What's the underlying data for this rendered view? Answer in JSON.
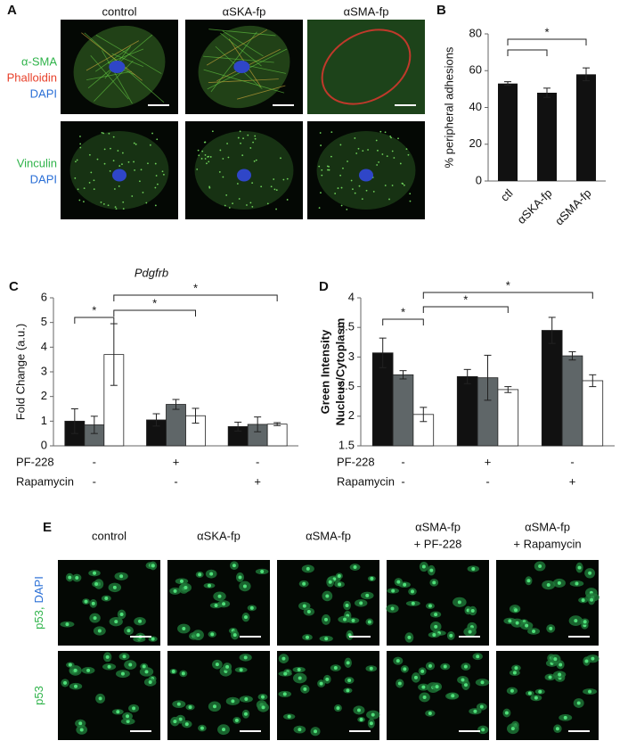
{
  "panel_a": {
    "label": "A",
    "columns": [
      "control",
      "αSKA-fp",
      "αSMA-fp"
    ],
    "rows": [
      [
        {
          "text": "α-SMA",
          "color": "#2fb34a"
        },
        {
          "text": "Phalloidin",
          "color": "#e8402a"
        },
        {
          "text": "DAPI",
          "color": "#2a6fd6"
        }
      ],
      [
        {
          "text": "Vinculin",
          "color": "#2fb34a"
        },
        {
          "text": "DAPI",
          "color": "#2a6fd6"
        }
      ]
    ]
  },
  "chart_data": [
    {
      "type": "bar",
      "panel_label": "B",
      "ylabel": "% peripheral adhesions",
      "categories": [
        "ctl",
        "αSKA-fp",
        "αSMA-fp"
      ],
      "values": [
        53,
        48,
        58
      ],
      "errors": [
        1,
        2.5,
        3.5
      ],
      "color": "#111111",
      "ylim": [
        0,
        80
      ],
      "yticks": [
        0,
        20,
        40,
        60,
        80
      ],
      "annotations": [
        "*"
      ]
    },
    {
      "type": "bar",
      "panel_label": "C",
      "title": "Pdgfrb",
      "ylabel": "Fold Change (a.u.)",
      "conditions": [
        {
          "label": "PF-228",
          "values": [
            "-",
            "+",
            "-"
          ]
        },
        {
          "label": "Rapamycin",
          "values": [
            "-",
            "-",
            "+"
          ]
        }
      ],
      "series": [
        {
          "color": "#111111",
          "values": [
            1.0,
            1.05,
            0.78
          ],
          "errors": [
            0.5,
            0.25,
            0.18
          ]
        },
        {
          "color": "#5f6668",
          "values": [
            0.85,
            1.68,
            0.87
          ],
          "errors": [
            0.35,
            0.2,
            0.3
          ]
        },
        {
          "color": "#ffffff",
          "values": [
            3.7,
            1.22,
            0.88
          ],
          "errors": [
            1.25,
            0.3,
            0.06
          ]
        }
      ],
      "ylim": [
        0,
        6
      ],
      "yticks": [
        0,
        1,
        2,
        3,
        4,
        5,
        6
      ],
      "annotations": [
        "*",
        "*",
        "*"
      ]
    },
    {
      "type": "bar",
      "panel_label": "D",
      "ylabel": [
        "Green Intensity",
        "Nucleus/Cytoplasm"
      ],
      "conditions": [
        {
          "label": "PF-228",
          "values": [
            "-",
            "+",
            "-"
          ]
        },
        {
          "label": "Rapamycin",
          "values": [
            "-",
            "-",
            "+"
          ]
        }
      ],
      "series": [
        {
          "color": "#111111",
          "values": [
            3.07,
            2.67,
            3.45
          ],
          "errors": [
            0.25,
            0.12,
            0.22
          ]
        },
        {
          "color": "#5f6668",
          "values": [
            2.7,
            2.65,
            3.02
          ],
          "errors": [
            0.07,
            0.38,
            0.07
          ]
        },
        {
          "color": "#ffffff",
          "values": [
            2.03,
            2.45,
            2.6
          ],
          "errors": [
            0.12,
            0.05,
            0.1
          ]
        }
      ],
      "ylim": [
        1.5,
        4
      ],
      "yticks": [
        1.5,
        2,
        2.5,
        3,
        3.5,
        4
      ],
      "annotations": [
        "*",
        "*",
        "*"
      ]
    }
  ],
  "panel_e": {
    "label": "E",
    "columns": [
      [
        "control"
      ],
      [
        "αSKA-fp"
      ],
      [
        "αSMA-fp"
      ],
      [
        "αSMA-fp",
        "+ PF-228"
      ],
      [
        "αSMA-fp",
        "+ Rapamycin"
      ]
    ],
    "rows": [
      [
        {
          "text": "p53,",
          "color": "#2fb34a"
        },
        {
          "text": "DAPI",
          "color": "#2a6fd6"
        }
      ],
      [
        {
          "text": "p53",
          "color": "#2fb34a"
        }
      ]
    ]
  }
}
